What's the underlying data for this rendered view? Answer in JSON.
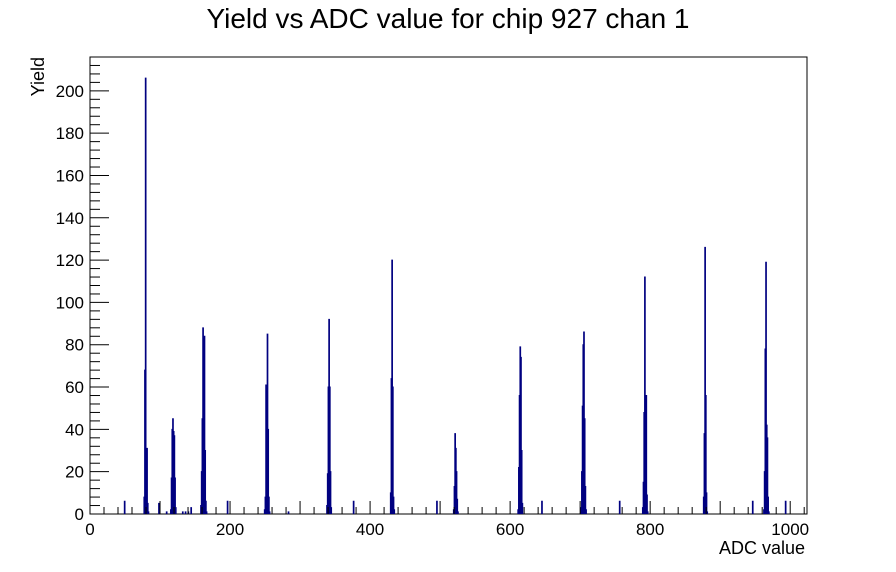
{
  "chart_data": {
    "type": "bar",
    "title": "Yield vs ADC value for chip 927 chan 1",
    "xlabel": "ADC value",
    "ylabel": "Yield",
    "xlim": [
      0,
      1024
    ],
    "ylim": [
      0,
      216
    ],
    "x_ticks": [
      0,
      200,
      400,
      600,
      800,
      1000
    ],
    "y_ticks": [
      0,
      20,
      40,
      60,
      80,
      100,
      120,
      140,
      160,
      180,
      200
    ],
    "grid": false,
    "legend": "none",
    "line_color": "#000080",
    "bin_width": 1,
    "bins": [
      {
        "x": 49,
        "y": 6
      },
      {
        "x": 77,
        "y": 8
      },
      {
        "x": 78,
        "y": 68
      },
      {
        "x": 79,
        "y": 206
      },
      {
        "x": 80,
        "y": 30
      },
      {
        "x": 81,
        "y": 31
      },
      {
        "x": 82,
        "y": 5
      },
      {
        "x": 83,
        "y": 1
      },
      {
        "x": 98,
        "y": 5
      },
      {
        "x": 109,
        "y": 1
      },
      {
        "x": 115,
        "y": 2
      },
      {
        "x": 116,
        "y": 17
      },
      {
        "x": 117,
        "y": 40
      },
      {
        "x": 118,
        "y": 45
      },
      {
        "x": 119,
        "y": 39
      },
      {
        "x": 120,
        "y": 37
      },
      {
        "x": 121,
        "y": 17
      },
      {
        "x": 122,
        "y": 3
      },
      {
        "x": 132,
        "y": 1
      },
      {
        "x": 136,
        "y": 1
      },
      {
        "x": 140,
        "y": 1
      },
      {
        "x": 144,
        "y": 3
      },
      {
        "x": 158,
        "y": 4
      },
      {
        "x": 159,
        "y": 20
      },
      {
        "x": 160,
        "y": 45
      },
      {
        "x": 161,
        "y": 88
      },
      {
        "x": 162,
        "y": 83
      },
      {
        "x": 163,
        "y": 84
      },
      {
        "x": 164,
        "y": 30
      },
      {
        "x": 165,
        "y": 6
      },
      {
        "x": 166,
        "y": 1
      },
      {
        "x": 196,
        "y": 6
      },
      {
        "x": 249,
        "y": 2
      },
      {
        "x": 250,
        "y": 8
      },
      {
        "x": 251,
        "y": 61
      },
      {
        "x": 252,
        "y": 58
      },
      {
        "x": 253,
        "y": 85
      },
      {
        "x": 254,
        "y": 40
      },
      {
        "x": 255,
        "y": 8
      },
      {
        "x": 256,
        "y": 1
      },
      {
        "x": 283,
        "y": 1
      },
      {
        "x": 338,
        "y": 4
      },
      {
        "x": 339,
        "y": 19
      },
      {
        "x": 340,
        "y": 60
      },
      {
        "x": 341,
        "y": 92
      },
      {
        "x": 342,
        "y": 60
      },
      {
        "x": 343,
        "y": 20
      },
      {
        "x": 344,
        "y": 3
      },
      {
        "x": 376,
        "y": 6
      },
      {
        "x": 429,
        "y": 10
      },
      {
        "x": 430,
        "y": 64
      },
      {
        "x": 431,
        "y": 120
      },
      {
        "x": 432,
        "y": 60
      },
      {
        "x": 433,
        "y": 8
      },
      {
        "x": 434,
        "y": 2
      },
      {
        "x": 495,
        "y": 6
      },
      {
        "x": 519,
        "y": 2
      },
      {
        "x": 520,
        "y": 13
      },
      {
        "x": 521,
        "y": 38
      },
      {
        "x": 522,
        "y": 31
      },
      {
        "x": 523,
        "y": 20
      },
      {
        "x": 524,
        "y": 7
      },
      {
        "x": 525,
        "y": 1
      },
      {
        "x": 611,
        "y": 2
      },
      {
        "x": 612,
        "y": 22
      },
      {
        "x": 613,
        "y": 56
      },
      {
        "x": 614,
        "y": 79
      },
      {
        "x": 615,
        "y": 74
      },
      {
        "x": 616,
        "y": 30
      },
      {
        "x": 617,
        "y": 5
      },
      {
        "x": 645,
        "y": 6
      },
      {
        "x": 701,
        "y": 3
      },
      {
        "x": 702,
        "y": 20
      },
      {
        "x": 703,
        "y": 51
      },
      {
        "x": 704,
        "y": 80
      },
      {
        "x": 705,
        "y": 86
      },
      {
        "x": 706,
        "y": 45
      },
      {
        "x": 707,
        "y": 13
      },
      {
        "x": 708,
        "y": 2
      },
      {
        "x": 756,
        "y": 6
      },
      {
        "x": 789,
        "y": 3
      },
      {
        "x": 790,
        "y": 15
      },
      {
        "x": 791,
        "y": 48
      },
      {
        "x": 792,
        "y": 112
      },
      {
        "x": 793,
        "y": 55
      },
      {
        "x": 794,
        "y": 56
      },
      {
        "x": 795,
        "y": 9
      },
      {
        "x": 796,
        "y": 1
      },
      {
        "x": 876,
        "y": 8
      },
      {
        "x": 877,
        "y": 38
      },
      {
        "x": 878,
        "y": 126
      },
      {
        "x": 879,
        "y": 56
      },
      {
        "x": 880,
        "y": 10
      },
      {
        "x": 881,
        "y": 1
      },
      {
        "x": 946,
        "y": 6
      },
      {
        "x": 962,
        "y": 2
      },
      {
        "x": 963,
        "y": 20
      },
      {
        "x": 964,
        "y": 78
      },
      {
        "x": 965,
        "y": 119
      },
      {
        "x": 966,
        "y": 42
      },
      {
        "x": 967,
        "y": 36
      },
      {
        "x": 968,
        "y": 8
      },
      {
        "x": 969,
        "y": 1
      },
      {
        "x": 993,
        "y": 6
      }
    ]
  }
}
